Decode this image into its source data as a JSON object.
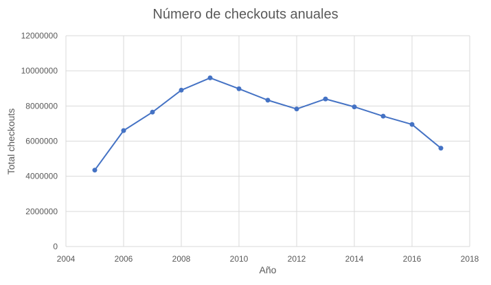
{
  "chart_data": {
    "type": "scatter",
    "title": "Número de checkouts anuales",
    "xlabel": "Año",
    "ylabel": "Total checkouts",
    "xlim": [
      2004,
      2018
    ],
    "ylim": [
      0,
      12000000
    ],
    "x_ticks": [
      2004,
      2006,
      2008,
      2010,
      2012,
      2014,
      2016,
      2018
    ],
    "y_ticks": [
      0,
      2000000,
      4000000,
      6000000,
      8000000,
      10000000,
      12000000
    ],
    "grid": true,
    "legend": "none",
    "series": [
      {
        "color": "#4472c4",
        "marker": "circle",
        "line": "straight",
        "x": [
          2005,
          2006,
          2007,
          2008,
          2009,
          2010,
          2011,
          2012,
          2013,
          2014,
          2015,
          2016,
          2017
        ],
        "y": [
          4350000,
          6600000,
          7650000,
          8900000,
          9600000,
          8980000,
          8330000,
          7830000,
          8400000,
          7950000,
          7420000,
          6950000,
          5600000
        ]
      }
    ]
  },
  "colors": {
    "series": "#4472c4",
    "grid": "#d9d9d9",
    "axis_text": "#595959",
    "title": "#595959"
  }
}
